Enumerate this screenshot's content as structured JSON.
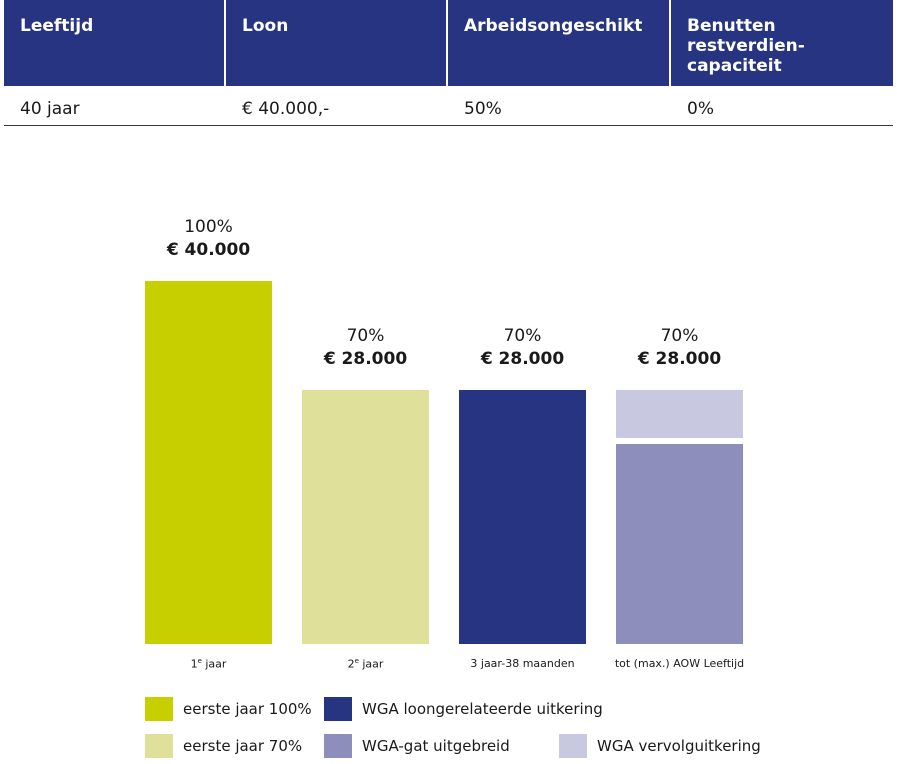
{
  "table": {
    "headers": [
      "Leeftijd",
      "Loon",
      "Arbeidsongeschikt",
      "Benutten restverdien-capaciteit"
    ],
    "row": [
      "40 jaar",
      "€ 40.000,-",
      "50%",
      "0%"
    ]
  },
  "colors": {
    "header_bg": "#263482",
    "eerste_jaar_100": "#c8cf00",
    "eerste_jaar_70": "#dfe19b",
    "wga_loongerelateerd": "#263482",
    "wga_gat": "#8e8ebd",
    "wga_vervolg": "#c8c8e1"
  },
  "chart_data": {
    "type": "bar",
    "stacked": true,
    "categories": [
      "1e jaar",
      "2e jaar",
      "3 jaar-38 maanden",
      "tot (max.) AOW Leeftijd"
    ],
    "category_labels": [
      {
        "base": "1",
        "sup": "e",
        "rest": " jaar"
      },
      {
        "base": "2",
        "sup": "e",
        "rest": " jaar"
      },
      {
        "base": "3 jaar-38 maanden",
        "sup": "",
        "rest": ""
      },
      {
        "base": "tot (max.) AOW Leeftijd",
        "sup": "",
        "rest": ""
      }
    ],
    "unit": "€",
    "ylim": [
      0,
      40000
    ],
    "grid": false,
    "legend_position": "bottom",
    "bar_labels": [
      {
        "percent": "100%",
        "amount": "€ 40.000"
      },
      {
        "percent": "70%",
        "amount": "€ 28.000"
      },
      {
        "percent": "70%",
        "amount": "€ 28.000"
      },
      {
        "percent": "70%",
        "amount": "€ 28.000"
      }
    ],
    "series": [
      {
        "name": "eerste jaar 100%",
        "color": "#c8cf00",
        "values": [
          40000,
          0,
          0,
          0
        ]
      },
      {
        "name": "eerste jaar 70%",
        "color": "#dfe19b",
        "values": [
          0,
          28000,
          0,
          0
        ]
      },
      {
        "name": "WGA loongerelateerde uitkering",
        "color": "#263482",
        "values": [
          0,
          0,
          28000,
          0
        ]
      },
      {
        "name": "WGA-gat uitgebreid",
        "color": "#8e8ebd",
        "values": [
          0,
          0,
          0,
          22000
        ]
      },
      {
        "name": "WGA vervolguitkering",
        "color": "#c8c8e1",
        "values": [
          0,
          0,
          0,
          6000
        ]
      }
    ]
  }
}
